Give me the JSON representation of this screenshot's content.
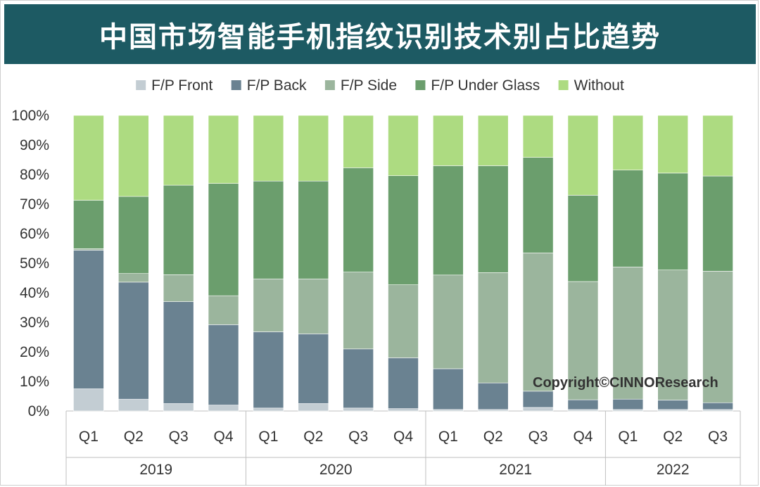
{
  "title": "中国市场智能手机指纹识别技术别占比趋势",
  "watermark": "Copyright©CINNOResearch",
  "colors": {
    "title_bg": "#1d5a63",
    "fp_front": "#c3cdd3",
    "fp_back": "#6a8291",
    "fp_side": "#9bb59d",
    "fp_under_glass": "#6b9e6d",
    "without": "#addb81"
  },
  "chart_data": {
    "type": "bar",
    "stacked": true,
    "percent": true,
    "ylim": [
      0,
      100
    ],
    "y_ticks": [
      "0%",
      "10%",
      "20%",
      "30%",
      "40%",
      "50%",
      "60%",
      "70%",
      "80%",
      "90%",
      "100%"
    ],
    "legend_position": "top",
    "grid": false,
    "categories": [
      "Q1",
      "Q2",
      "Q3",
      "Q4",
      "Q1",
      "Q2",
      "Q3",
      "Q4",
      "Q1",
      "Q2",
      "Q3",
      "Q4",
      "Q1",
      "Q2",
      "Q3"
    ],
    "groups": [
      {
        "label": "2019",
        "count": 4
      },
      {
        "label": "2020",
        "count": 4
      },
      {
        "label": "2021",
        "count": 4
      },
      {
        "label": "2022",
        "count": 3
      }
    ],
    "series": [
      {
        "name": "F/P Front",
        "color": "#c3cdd3",
        "values": [
          7.5,
          4.0,
          2.5,
          2.0,
          1.0,
          2.5,
          1.0,
          0.8,
          0.5,
          0.5,
          1.2,
          0.5,
          0.5,
          0.5,
          0.5
        ]
      },
      {
        "name": "F/P Back",
        "color": "#6a8291",
        "values": [
          46.9,
          39.6,
          34.5,
          27.2,
          25.8,
          23.6,
          20.0,
          17.2,
          13.8,
          9.0,
          5.5,
          3.3,
          3.5,
          3.2,
          2.3
        ]
      },
      {
        "name": "F/P Side",
        "color": "#9bb59d",
        "values": [
          0.5,
          2.9,
          9.1,
          9.8,
          17.9,
          18.6,
          26.0,
          24.7,
          31.7,
          37.3,
          46.8,
          40.0,
          44.7,
          44.0,
          44.5
        ]
      },
      {
        "name": "F/P Under Glass",
        "color": "#6b9e6d",
        "values": [
          16.4,
          26.1,
          30.3,
          38.0,
          33.1,
          33.1,
          35.3,
          36.9,
          37.0,
          36.2,
          32.3,
          29.2,
          32.8,
          32.8,
          32.2
        ]
      },
      {
        "name": "Without",
        "color": "#addb81",
        "values": [
          28.7,
          27.4,
          23.6,
          23.0,
          22.2,
          22.2,
          17.7,
          20.4,
          17.0,
          17.0,
          14.2,
          27.0,
          18.5,
          19.5,
          20.5
        ]
      }
    ]
  }
}
